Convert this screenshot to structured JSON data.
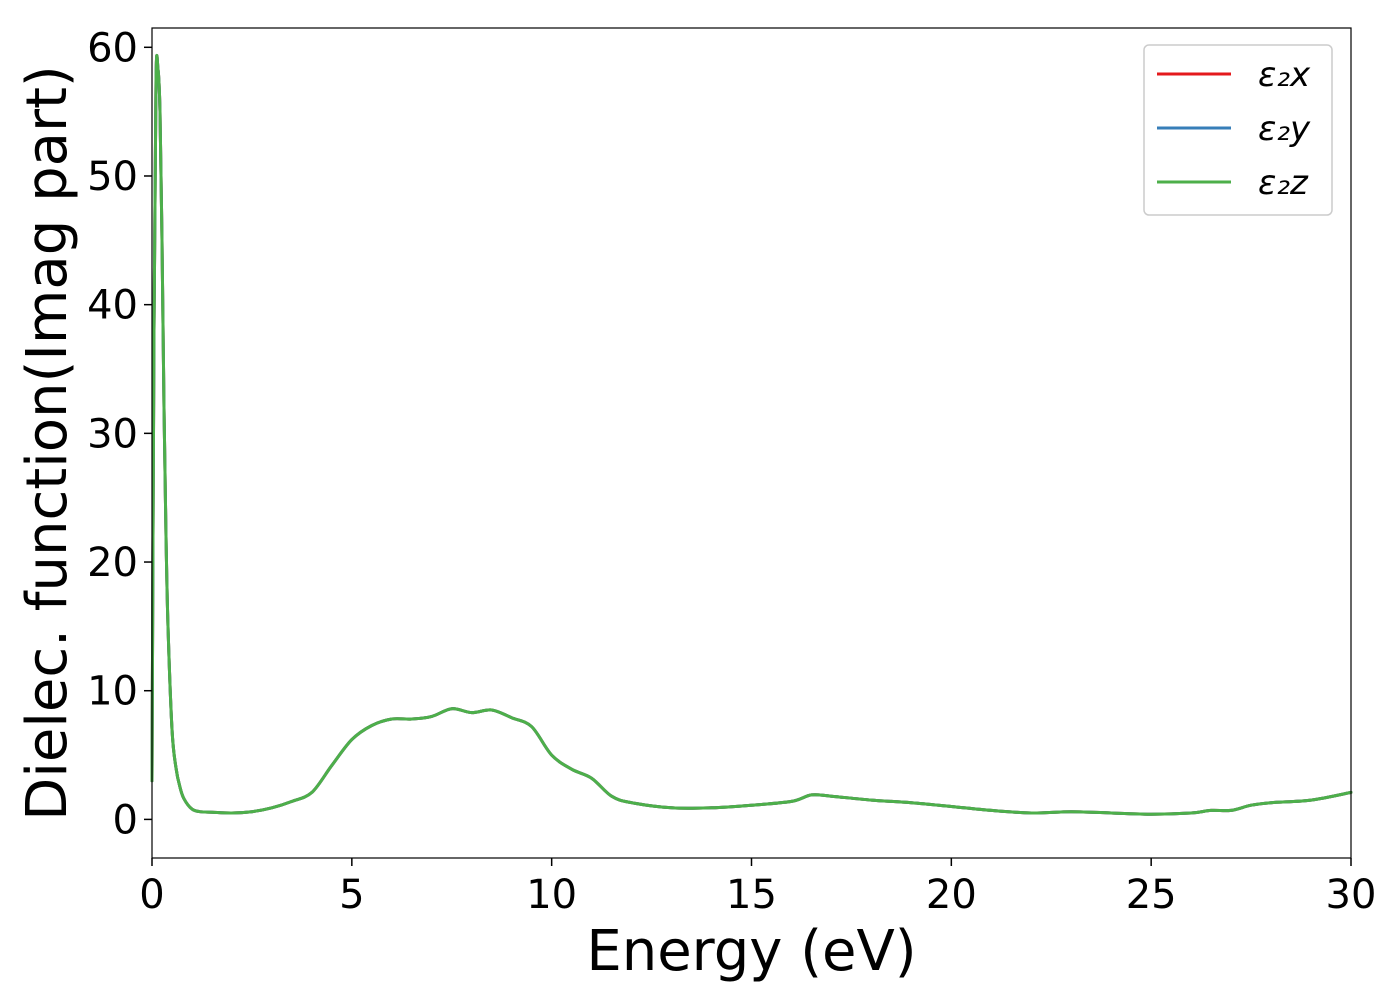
{
  "chart_data": {
    "type": "line",
    "title": "",
    "xlabel": "Energy (eV)",
    "ylabel": "Dielec. function(Imag part)",
    "xlim": [
      0,
      30
    ],
    "ylim": [
      -3,
      61.5
    ],
    "xticks": [
      0,
      5,
      10,
      15,
      20,
      25,
      30
    ],
    "yticks": [
      0,
      10,
      20,
      30,
      40,
      50,
      60
    ],
    "grid": false,
    "legend_position": "top-right",
    "x": [
      0,
      0.05,
      0.1,
      0.15,
      0.2,
      0.25,
      0.3,
      0.35,
      0.4,
      0.5,
      0.6,
      0.7,
      0.8,
      1.0,
      1.2,
      1.5,
      2.0,
      2.5,
      3.0,
      3.5,
      4.0,
      4.5,
      5.0,
      5.5,
      6.0,
      6.5,
      7.0,
      7.5,
      8.0,
      8.5,
      9.0,
      9.5,
      10.0,
      10.5,
      11.0,
      11.5,
      12.0,
      13.0,
      14.0,
      15.0,
      16.0,
      16.5,
      17.0,
      18.0,
      19.0,
      20.0,
      21.0,
      22.0,
      23.0,
      24.0,
      25.0,
      26.0,
      26.5,
      27.0,
      27.5,
      28.0,
      29.0,
      30.0
    ],
    "series": [
      {
        "name": "ε₂x",
        "color": "#e41a1c",
        "values": [
          3.0,
          38.0,
          57.5,
          58.3,
          55.0,
          45.0,
          32.0,
          22.0,
          15.0,
          7.0,
          4.0,
          2.5,
          1.6,
          0.8,
          0.6,
          0.55,
          0.5,
          0.6,
          0.9,
          1.4,
          2.1,
          4.2,
          6.2,
          7.3,
          7.8,
          7.8,
          8.0,
          8.6,
          8.3,
          8.5,
          7.9,
          7.2,
          5.0,
          3.9,
          3.2,
          1.8,
          1.3,
          0.9,
          0.9,
          1.1,
          1.4,
          1.9,
          1.8,
          1.5,
          1.3,
          1.0,
          0.7,
          0.5,
          0.6,
          0.5,
          0.4,
          0.5,
          0.7,
          0.7,
          1.1,
          1.3,
          1.5,
          2.1
        ]
      },
      {
        "name": "ε₂y",
        "color": "#377eb8",
        "values": [
          3.0,
          38.0,
          57.5,
          58.3,
          55.0,
          45.0,
          32.0,
          22.0,
          15.0,
          7.0,
          4.0,
          2.5,
          1.6,
          0.8,
          0.6,
          0.55,
          0.5,
          0.6,
          0.9,
          1.4,
          2.1,
          4.2,
          6.2,
          7.3,
          7.8,
          7.8,
          8.0,
          8.6,
          8.3,
          8.5,
          7.9,
          7.2,
          5.0,
          3.9,
          3.2,
          1.8,
          1.3,
          0.9,
          0.9,
          1.1,
          1.4,
          1.9,
          1.8,
          1.5,
          1.3,
          1.0,
          0.7,
          0.5,
          0.6,
          0.5,
          0.4,
          0.5,
          0.7,
          0.7,
          1.1,
          1.3,
          1.5,
          2.1
        ]
      },
      {
        "name": "ε₂z",
        "color": "#4daf4a",
        "values": [
          3.0,
          38.0,
          57.5,
          58.3,
          55.0,
          45.0,
          32.0,
          22.0,
          15.0,
          7.0,
          4.0,
          2.5,
          1.6,
          0.8,
          0.6,
          0.55,
          0.5,
          0.6,
          0.9,
          1.4,
          2.1,
          4.2,
          6.2,
          7.3,
          7.8,
          7.8,
          8.0,
          8.6,
          8.3,
          8.5,
          7.9,
          7.2,
          5.0,
          3.9,
          3.2,
          1.8,
          1.3,
          0.9,
          0.9,
          1.1,
          1.4,
          1.9,
          1.8,
          1.5,
          1.3,
          1.0,
          0.7,
          0.5,
          0.6,
          0.5,
          0.4,
          0.5,
          0.7,
          0.7,
          1.1,
          1.3,
          1.5,
          2.1
        ]
      }
    ]
  }
}
